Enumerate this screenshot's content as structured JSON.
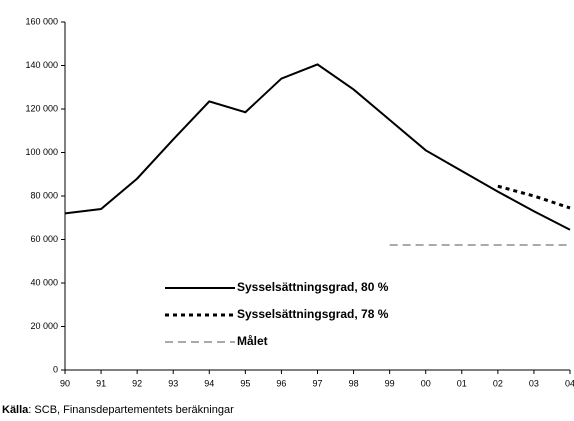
{
  "chart_data": {
    "type": "line",
    "categories": [
      "90",
      "91",
      "92",
      "93",
      "94",
      "95",
      "96",
      "97",
      "98",
      "99",
      "00",
      "01",
      "02",
      "03",
      "04"
    ],
    "series": [
      {
        "name": "Sysselsättningsgrad, 80 %",
        "color": "#000000",
        "style": "solid",
        "values": [
          72000,
          74000,
          88000,
          106000,
          123500,
          118500,
          134000,
          140500,
          129000,
          115000,
          101000,
          91500,
          82000,
          73000,
          64500
        ]
      },
      {
        "name": "Sysselsättningsgrad, 78 %",
        "color": "#000000",
        "style": "dotted",
        "values": [
          null,
          null,
          null,
          null,
          null,
          null,
          null,
          null,
          null,
          null,
          null,
          null,
          84500,
          80000,
          74500
        ]
      },
      {
        "name": "Målet",
        "color": "#555555",
        "style": "dashed",
        "values": [
          null,
          null,
          null,
          null,
          null,
          null,
          null,
          null,
          null,
          57500,
          57500,
          57500,
          57500,
          57500,
          57500
        ]
      }
    ],
    "ylim": [
      0,
      160000
    ],
    "yticks": [
      0,
      {
        "value": 20000,
        "label": "20 000"
      },
      {
        "value": 40000,
        "label": "40 000"
      },
      {
        "value": 60000,
        "label": "60 000"
      },
      {
        "value": 80000,
        "label": "80 000"
      },
      {
        "value": 100000,
        "label": "100 000"
      },
      {
        "value": 120000,
        "label": "120 000"
      },
      {
        "value": 140000,
        "label": "140 000"
      },
      {
        "value": 160000,
        "label": "160 000"
      }
    ],
    "grid": false,
    "source_label": "Källa",
    "source_text": ": SCB, Finansdepartementets beräkningar"
  }
}
